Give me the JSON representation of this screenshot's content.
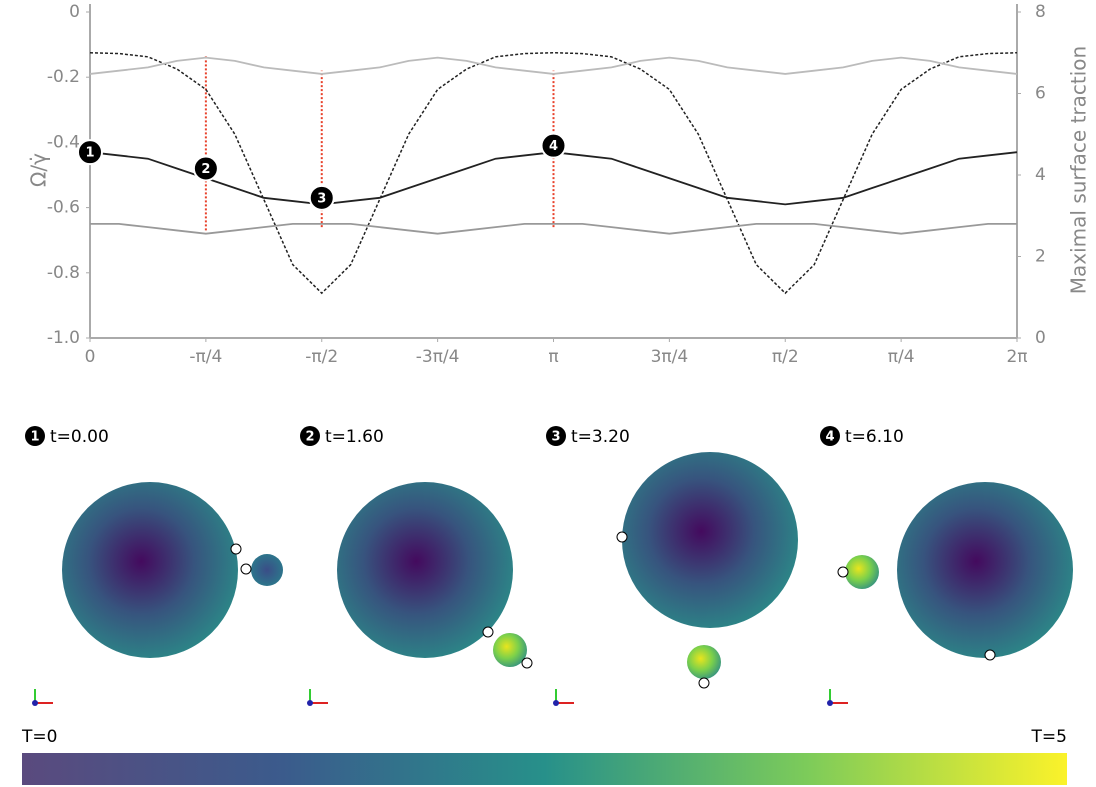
{
  "chart_data": {
    "type": "line",
    "ylabel": "Ω/γ̇",
    "y2label": "Maximal surface traction",
    "xlim": [
      0,
      8
    ],
    "xticks": [
      {
        "value": 0,
        "label": "0"
      },
      {
        "value": 1,
        "label": "-π/4"
      },
      {
        "value": 2,
        "label": "-π/2"
      },
      {
        "value": 3,
        "label": "-3π/4"
      },
      {
        "value": 4,
        "label": "π"
      },
      {
        "value": 5,
        "label": "3π/4"
      },
      {
        "value": 6,
        "label": "π/2"
      },
      {
        "value": 7,
        "label": "π/4"
      },
      {
        "value": 8,
        "label": "2π"
      }
    ],
    "ylim": [
      -1.0,
      0
    ],
    "yticks": [
      {
        "value": 0,
        "label": "0"
      },
      -0.2,
      -0.4,
      -0.6,
      -0.8,
      {
        "value": -1.0,
        "label": "-1.0"
      }
    ],
    "y2lim": [
      0,
      8
    ],
    "y2ticks": [
      0,
      2,
      4,
      6,
      8
    ],
    "x": [
      0,
      0.25,
      0.5,
      0.75,
      1,
      1.25,
      1.5,
      1.75,
      2,
      2.25,
      2.5,
      2.75,
      3,
      3.25,
      3.5,
      3.75,
      4,
      4.25,
      4.5,
      4.75,
      5,
      5.25,
      5.5,
      5.75,
      6,
      6.25,
      6.5,
      6.75,
      7,
      7.25,
      7.5,
      7.75,
      8
    ],
    "series": [
      {
        "color": "#222222",
        "style": "solid",
        "values": [
          -0.43,
          -0.44,
          -0.45,
          -0.48,
          -0.51,
          -0.54,
          -0.57,
          -0.58,
          -0.59,
          -0.58,
          -0.57,
          -0.54,
          -0.51,
          -0.48,
          -0.45,
          -0.44,
          -0.43,
          -0.44,
          -0.45,
          -0.48,
          -0.51,
          -0.54,
          -0.57,
          -0.58,
          -0.59,
          -0.58,
          -0.57,
          -0.54,
          -0.51,
          -0.48,
          -0.45,
          -0.44,
          -0.43
        ]
      },
      {
        "color": "#222222",
        "style": "dashed",
        "axis": "y2",
        "values": [
          7.0,
          6.98,
          6.9,
          6.6,
          6.1,
          5.0,
          3.4,
          1.8,
          1.1,
          1.8,
          3.4,
          5.0,
          6.1,
          6.6,
          6.9,
          6.98,
          7.0,
          6.98,
          6.9,
          6.6,
          6.1,
          5.0,
          3.4,
          1.8,
          1.1,
          1.8,
          3.4,
          5.0,
          6.1,
          6.6,
          6.9,
          6.98,
          7.0
        ]
      },
      {
        "color": "#bbbbbb",
        "style": "solid",
        "values": [
          -0.19,
          -0.18,
          -0.17,
          -0.15,
          -0.14,
          -0.15,
          -0.17,
          -0.18,
          -0.19,
          -0.18,
          -0.17,
          -0.15,
          -0.14,
          -0.15,
          -0.17,
          -0.18,
          -0.19,
          -0.18,
          -0.17,
          -0.15,
          -0.14,
          -0.15,
          -0.17,
          -0.18,
          -0.19,
          -0.18,
          -0.17,
          -0.15,
          -0.14,
          -0.15,
          -0.17,
          -0.18,
          -0.19
        ]
      },
      {
        "color": "#999999",
        "style": "solid",
        "values": [
          -0.65,
          -0.65,
          -0.66,
          -0.67,
          -0.68,
          -0.67,
          -0.66,
          -0.65,
          -0.65,
          -0.65,
          -0.66,
          -0.67,
          -0.68,
          -0.67,
          -0.66,
          -0.65,
          -0.65,
          -0.65,
          -0.66,
          -0.67,
          -0.68,
          -0.67,
          -0.66,
          -0.65,
          -0.65,
          -0.65,
          -0.66,
          -0.67,
          -0.68,
          -0.67,
          -0.66,
          -0.65,
          -0.65
        ]
      }
    ],
    "red_lines": [
      {
        "x": 1,
        "ymin": -0.67,
        "ymax": -0.13
      },
      {
        "x": 2,
        "ymin": -0.66,
        "ymax": -0.18
      },
      {
        "x": 4,
        "ymin": -0.66,
        "ymax": -0.18
      }
    ],
    "markers": [
      {
        "label": "1",
        "x": 0,
        "y": -0.43
      },
      {
        "label": "2",
        "x": 1,
        "y": -0.48
      },
      {
        "label": "3",
        "x": 2,
        "y": -0.57
      },
      {
        "label": "4",
        "x": 4,
        "y": -0.41
      }
    ]
  },
  "panels": [
    {
      "number": "1",
      "label": "t=0.00"
    },
    {
      "number": "2",
      "label": "t=1.60"
    },
    {
      "number": "3",
      "label": "t=3.20"
    },
    {
      "number": "4",
      "label": "t=6.10"
    }
  ],
  "colorbar": {
    "min_label": "T=0",
    "max_label": "T=5"
  }
}
